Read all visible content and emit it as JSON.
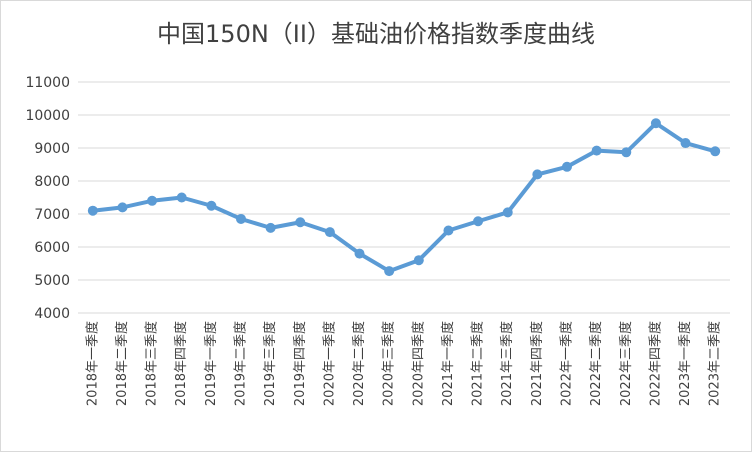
{
  "chart_data": {
    "type": "line",
    "title": "中国150N（II）基础油价格指数季度曲线",
    "xlabel": "",
    "ylabel": "",
    "ylim": [
      4000,
      11000
    ],
    "yticks": [
      4000,
      5000,
      6000,
      7000,
      8000,
      9000,
      10000,
      11000
    ],
    "grid": true,
    "legend": "none",
    "color": "#5b9bd5",
    "categories": [
      "2018年一季度",
      "2018年二季度",
      "2018年三季度",
      "2018年四季度",
      "2019年一季度",
      "2019年二季度",
      "2019年三季度",
      "2019年四季度",
      "2020年一季度",
      "2020年二季度",
      "2020年三季度",
      "2020年四季度",
      "2021年一季度",
      "2021年二季度",
      "2021年三季度",
      "2021年四季度",
      "2022年一季度",
      "2022年二季度",
      "2022年三季度",
      "2022年四季度",
      "2023年一季度",
      "2023年二季度"
    ],
    "values": [
      7100,
      7200,
      7400,
      7500,
      7250,
      6850,
      6580,
      6750,
      6450,
      5800,
      5270,
      5600,
      6500,
      6780,
      7050,
      8200,
      8430,
      8920,
      8870,
      9750,
      9150,
      8900
    ]
  }
}
